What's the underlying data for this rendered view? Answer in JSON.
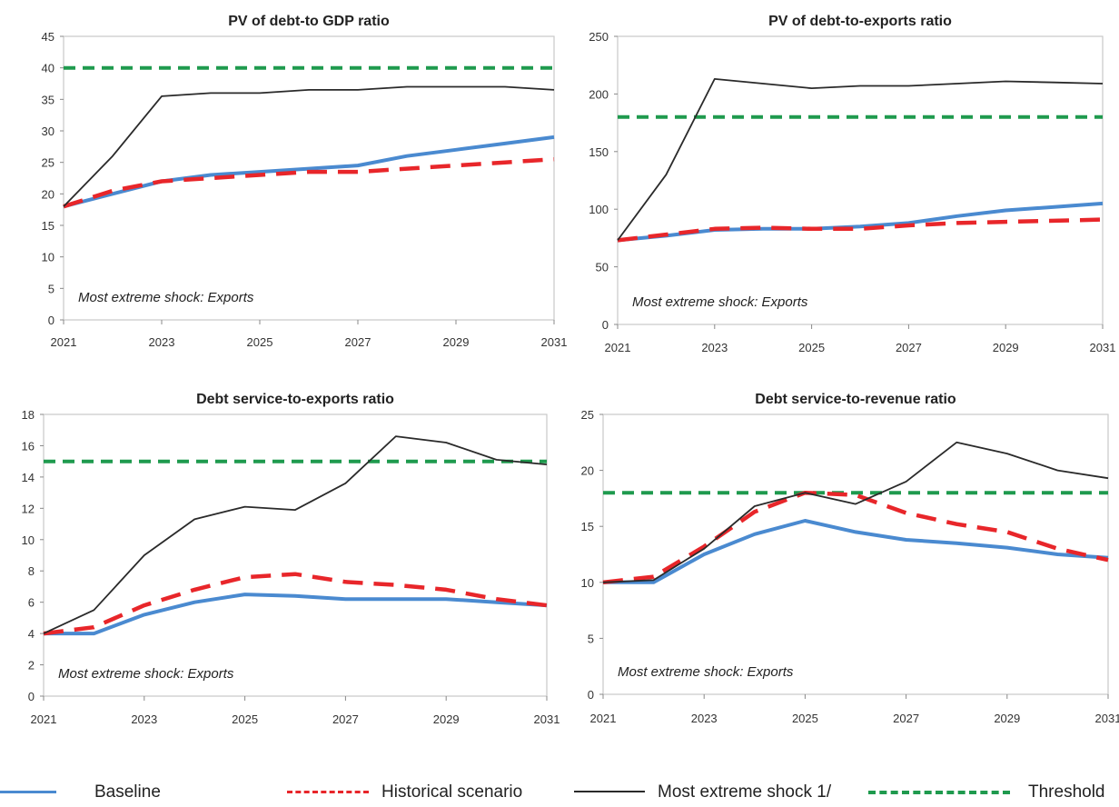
{
  "legend": {
    "baseline": "Baseline",
    "historical": "Historical scenario",
    "shock": "Most extreme shock 1/",
    "threshold": "Threshold"
  },
  "colors": {
    "baseline": "#4a8ad0",
    "historical": "#e8262a",
    "shock": "#2a2a2a",
    "threshold": "#1f9a4e"
  },
  "chart_data": [
    {
      "type": "line",
      "title": "PV of debt-to GDP ratio",
      "annotation": "Most extreme shock: Exports",
      "x": [
        2021,
        2022,
        2023,
        2024,
        2025,
        2026,
        2027,
        2028,
        2029,
        2030,
        2031
      ],
      "x_tick_labels": [
        "2021",
        "2023",
        "2025",
        "2027",
        "2029",
        "2031"
      ],
      "ylim": [
        0,
        45
      ],
      "y_ticks": [
        0,
        5,
        10,
        15,
        20,
        25,
        30,
        35,
        40,
        45
      ],
      "series": [
        {
          "name": "Baseline",
          "values": [
            18,
            20,
            22,
            23,
            23.5,
            24,
            24.5,
            26,
            27,
            28,
            29
          ]
        },
        {
          "name": "Historical scenario",
          "values": [
            18,
            20.5,
            22,
            22.5,
            23,
            23.5,
            23.5,
            24,
            24.5,
            25,
            25.5
          ]
        },
        {
          "name": "Most extreme shock 1/",
          "values": [
            18,
            26,
            35.5,
            36,
            36,
            36.5,
            36.5,
            37,
            37,
            37,
            36.5
          ]
        },
        {
          "name": "Threshold",
          "values": [
            40,
            40,
            40,
            40,
            40,
            40,
            40,
            40,
            40,
            40,
            40
          ]
        }
      ]
    },
    {
      "type": "line",
      "title": "PV of debt-to-exports ratio",
      "annotation": "Most extreme shock: Exports",
      "x": [
        2021,
        2022,
        2023,
        2024,
        2025,
        2026,
        2027,
        2028,
        2029,
        2030,
        2031
      ],
      "x_tick_labels": [
        "2021",
        "2023",
        "2025",
        "2027",
        "2029",
        "2031"
      ],
      "ylim": [
        0,
        250
      ],
      "y_ticks": [
        0,
        50,
        100,
        150,
        200,
        250
      ],
      "series": [
        {
          "name": "Baseline",
          "values": [
            73,
            77,
            82,
            83,
            83,
            85,
            88,
            94,
            99,
            102,
            105
          ]
        },
        {
          "name": "Historical scenario",
          "values": [
            73,
            78,
            83,
            84,
            83,
            83,
            86,
            88,
            89,
            90,
            91
          ]
        },
        {
          "name": "Most extreme shock 1/",
          "values": [
            73,
            130,
            213,
            209,
            205,
            207,
            207,
            209,
            211,
            210,
            209
          ]
        },
        {
          "name": "Threshold",
          "values": [
            180,
            180,
            180,
            180,
            180,
            180,
            180,
            180,
            180,
            180,
            180
          ]
        }
      ]
    },
    {
      "type": "line",
      "title": "Debt service-to-exports ratio",
      "annotation": "Most extreme shock: Exports",
      "x": [
        2021,
        2022,
        2023,
        2024,
        2025,
        2026,
        2027,
        2028,
        2029,
        2030,
        2031
      ],
      "x_tick_labels": [
        "2021",
        "2023",
        "2025",
        "2027",
        "2029",
        "2031"
      ],
      "ylim": [
        0,
        18
      ],
      "y_ticks": [
        0,
        2,
        4,
        6,
        8,
        10,
        12,
        14,
        16,
        18
      ],
      "series": [
        {
          "name": "Baseline",
          "values": [
            4,
            4,
            5.2,
            6,
            6.5,
            6.4,
            6.2,
            6.2,
            6.2,
            6,
            5.8
          ]
        },
        {
          "name": "Historical scenario",
          "values": [
            4,
            4.4,
            5.8,
            6.8,
            7.6,
            7.8,
            7.3,
            7.1,
            6.8,
            6.2,
            5.8
          ]
        },
        {
          "name": "Most extreme shock 1/",
          "values": [
            4,
            5.5,
            9,
            11.3,
            12.1,
            11.9,
            13.6,
            16.6,
            16.2,
            15.1,
            14.8
          ]
        },
        {
          "name": "Threshold",
          "values": [
            15,
            15,
            15,
            15,
            15,
            15,
            15,
            15,
            15,
            15,
            15
          ]
        }
      ]
    },
    {
      "type": "line",
      "title": "Debt service-to-revenue ratio",
      "annotation": "Most extreme shock: Exports",
      "x": [
        2021,
        2022,
        2023,
        2024,
        2025,
        2026,
        2027,
        2028,
        2029,
        2030,
        2031
      ],
      "x_tick_labels": [
        "2021",
        "2023",
        "2025",
        "2027",
        "2029",
        "2031"
      ],
      "ylim": [
        0,
        25
      ],
      "y_ticks": [
        0,
        5,
        10,
        15,
        20,
        25
      ],
      "series": [
        {
          "name": "Baseline",
          "values": [
            10,
            10,
            12.5,
            14.3,
            15.5,
            14.5,
            13.8,
            13.5,
            13.1,
            12.5,
            12.2
          ]
        },
        {
          "name": "Historical scenario",
          "values": [
            10,
            10.5,
            13.2,
            16.3,
            18,
            17.8,
            16.2,
            15.2,
            14.5,
            13,
            12
          ]
        },
        {
          "name": "Most extreme shock 1/",
          "values": [
            10,
            10.2,
            13,
            16.8,
            18,
            17,
            19,
            22.5,
            21.5,
            20,
            19.3
          ]
        },
        {
          "name": "Threshold",
          "values": [
            18,
            18,
            18,
            18,
            18,
            18,
            18,
            18,
            18,
            18,
            18
          ]
        }
      ]
    }
  ]
}
